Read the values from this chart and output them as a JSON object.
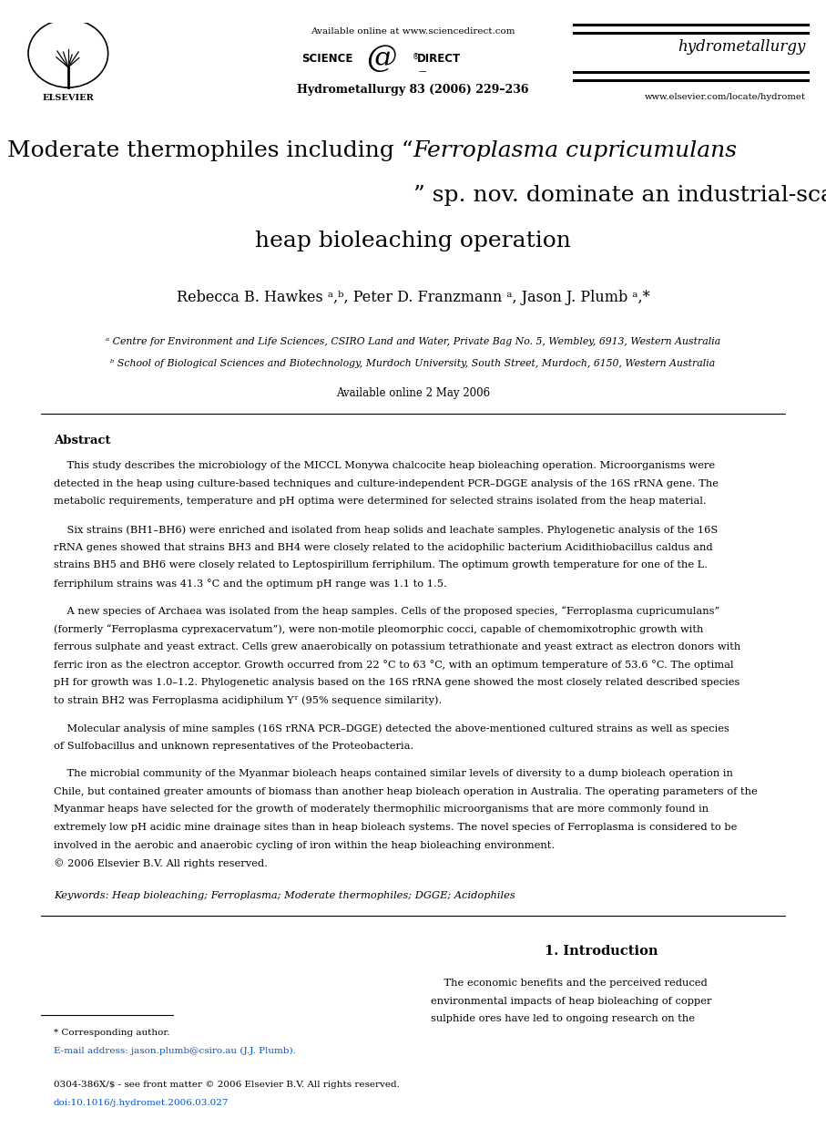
{
  "bg_color": "#ffffff",
  "page_width": 9.07,
  "page_height": 12.38,
  "dpi": 100,
  "available_online_header": "Available online at www.sciencedirect.com",
  "science_direct": "SCIENCE    DIRECT",
  "journal_name": "hydrometallurgy",
  "journal_ref": "Hydrometallurgy 83 (2006) 229–236",
  "url": "www.elsevier.com/locate/hydromet",
  "elsevier_text": "ELSEVIER",
  "title_line1_plain": "Moderate thermophiles including “",
  "title_line1_italic": "Ferroplasma cupricumulans",
  "title_line1_end": "”",
  "title_line2": "sp. nov. dominate an industrial-scale chalcocite",
  "title_line3": "heap bioleaching operation",
  "authors": "Rebecca B. Hawkes ᵃ,ᵇ, Peter D. Franzmann ᵃ, Jason J. Plumb ᵃ,*",
  "affil_a": "ᵃ Centre for Environment and Life Sciences, CSIRO Land and Water, Private Bag No. 5, Wembley, 6913, Western Australia",
  "affil_b": "ᵇ School of Biological Sciences and Biotechnology, Murdoch University, South Street, Murdoch, 6150, Western Australia",
  "available_online_date": "Available online 2 May 2006",
  "abstract_title": "Abstract",
  "lines_p1": [
    "    This study describes the microbiology of the MICCL Monywa chalcocite heap bioleaching operation. Microorganisms were",
    "detected in the heap using culture-based techniques and culture-independent PCR–DGGE analysis of the 16S rRNA gene. The",
    "metabolic requirements, temperature and pH optima were determined for selected strains isolated from the heap material."
  ],
  "lines_p2": [
    "    Six strains (BH1–BH6) were enriched and isolated from heap solids and leachate samples. Phylogenetic analysis of the 16S",
    "rRNA genes showed that strains BH3 and BH4 were closely related to the acidophilic bacterium Acidithiobacillus caldus and",
    "strains BH5 and BH6 were closely related to Leptospirillum ferriphilum. The optimum growth temperature for one of the L.",
    "ferriphilum strains was 41.3 °C and the optimum pH range was 1.1 to 1.5."
  ],
  "lines_p3": [
    "    A new species of Archaea was isolated from the heap samples. Cells of the proposed species, “Ferroplasma cupricumulans”",
    "(formerly “Ferroplasma cyprexacervatum”), were non-motile pleomorphic cocci, capable of chemomixotrophic growth with",
    "ferrous sulphate and yeast extract. Cells grew anaerobically on potassium tetrathionate and yeast extract as electron donors with",
    "ferric iron as the electron acceptor. Growth occurred from 22 °C to 63 °C, with an optimum temperature of 53.6 °C. The optimal",
    "pH for growth was 1.0–1.2. Phylogenetic analysis based on the 16S rRNA gene showed the most closely related described species",
    "to strain BH2 was Ferroplasma acidiphilum Yᵀ (95% sequence similarity)."
  ],
  "lines_p4": [
    "    Molecular analysis of mine samples (16S rRNA PCR–DGGE) detected the above-mentioned cultured strains as well as species",
    "of Sulfobacillus and unknown representatives of the Proteobacteria."
  ],
  "lines_p5": [
    "    The microbial community of the Myanmar bioleach heaps contained similar levels of diversity to a dump bioleach operation in",
    "Chile, but contained greater amounts of biomass than another heap bioleach operation in Australia. The operating parameters of the",
    "Myanmar heaps have selected for the growth of moderately thermophilic microorganisms that are more commonly found in",
    "extremely low pH acidic mine drainage sites than in heap bioleach systems. The novel species of Ferroplasma is considered to be",
    "involved in the aerobic and anaerobic cycling of iron within the heap bioleaching environment.",
    "© 2006 Elsevier B.V. All rights reserved."
  ],
  "keywords": "Keywords: Heap bioleaching; Ferroplasma; Moderate thermophiles; DGGE; Acidophiles",
  "intro_title": "1. Introduction",
  "lines_intro": [
    "    The economic benefits and the perceived reduced",
    "environmental impacts of heap bioleaching of copper",
    "sulphide ores have led to ongoing research on the"
  ],
  "footnote_star": "* Corresponding author.",
  "footnote_email": "E-mail address: jason.plumb@csiro.au (J.J. Plumb).",
  "footnote_issn": "0304-386X/$ - see front matter © 2006 Elsevier B.V. All rights reserved.",
  "footnote_doi": "doi:10.1016/j.hydromet.2006.03.027"
}
